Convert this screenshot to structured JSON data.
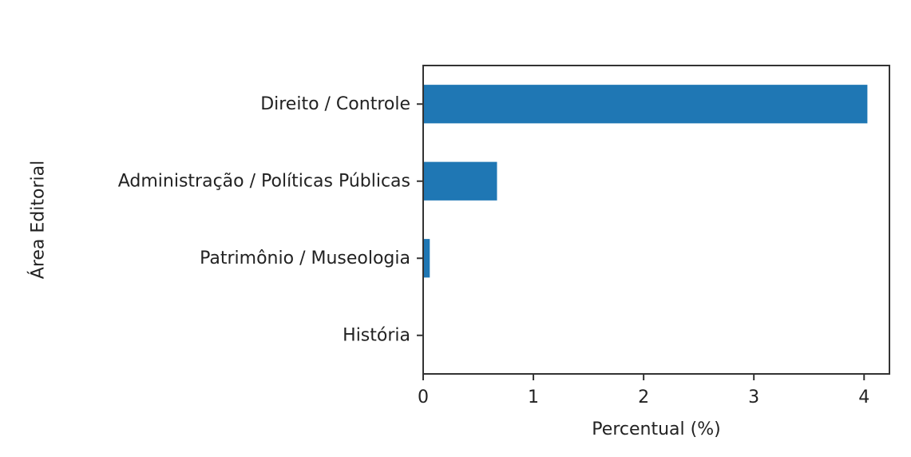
{
  "chart_data": {
    "type": "bar",
    "orientation": "horizontal",
    "title": "",
    "xlabel": "Percentual (%)",
    "ylabel": "Área Editorial",
    "categories": [
      "Direito / Controle",
      "Administração / Políticas Públicas",
      "Patrimônio / Museologia",
      "História"
    ],
    "values": [
      4.03,
      0.67,
      0.06,
      0.0
    ],
    "xlim": [
      0,
      4.23
    ],
    "xticks": [
      0,
      1,
      2,
      3,
      4
    ],
    "bar_color": "#1f77b4",
    "grid": false,
    "legend": "none"
  }
}
